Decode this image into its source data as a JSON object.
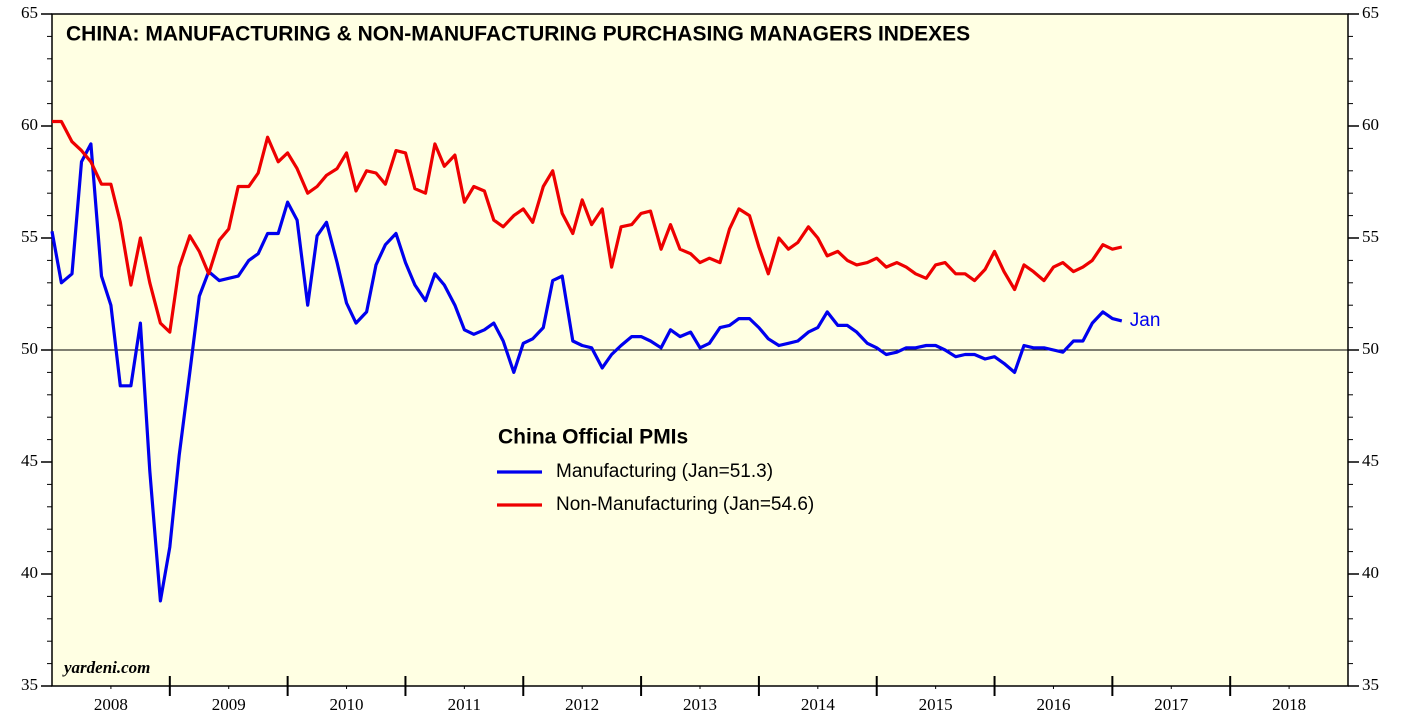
{
  "chart_data": {
    "type": "line",
    "title": "CHINA: MANUFACTURING & NON-MANUFACTURING PURCHASING MANAGERS INDEXES",
    "source": "yardeni.com",
    "legend_title": "China Official PMIs",
    "annotation": "Jan",
    "x": [
      2008,
      2008.08,
      2008.17,
      2008.25,
      2008.33,
      2008.42,
      2008.5,
      2008.58,
      2008.67,
      2008.75,
      2008.83,
      2008.92,
      2009,
      2009.08,
      2009.17,
      2009.25,
      2009.33,
      2009.42,
      2009.5,
      2009.58,
      2009.67,
      2009.75,
      2009.83,
      2009.92,
      2010,
      2010.08,
      2010.17,
      2010.25,
      2010.33,
      2010.42,
      2010.5,
      2010.58,
      2010.67,
      2010.75,
      2010.83,
      2010.92,
      2011,
      2011.08,
      2011.17,
      2011.25,
      2011.33,
      2011.42,
      2011.5,
      2011.58,
      2011.67,
      2011.75,
      2011.83,
      2011.92,
      2012,
      2012.08,
      2012.17,
      2012.25,
      2012.33,
      2012.42,
      2012.5,
      2012.58,
      2012.67,
      2012.75,
      2012.83,
      2012.92,
      2013,
      2013.08,
      2013.17,
      2013.25,
      2013.33,
      2013.42,
      2013.5,
      2013.58,
      2013.67,
      2013.75,
      2013.83,
      2013.92,
      2014,
      2014.08,
      2014.17,
      2014.25,
      2014.33,
      2014.42,
      2014.5,
      2014.58,
      2014.67,
      2014.75,
      2014.83,
      2014.92,
      2015,
      2015.08,
      2015.17,
      2015.25,
      2015.33,
      2015.42,
      2015.5,
      2015.58,
      2015.67,
      2015.75,
      2015.83,
      2015.92,
      2016,
      2016.08,
      2016.17,
      2016.25,
      2016.33,
      2016.42,
      2016.5,
      2016.58,
      2016.67,
      2016.75,
      2016.83,
      2016.92,
      2017,
      2017.08
    ],
    "series": [
      {
        "name": "Manufacturing (Jan=51.3)",
        "color": "#0000ee",
        "values": [
          55.3,
          53.0,
          53.4,
          58.4,
          59.2,
          53.3,
          52.0,
          48.4,
          48.4,
          51.2,
          44.6,
          38.8,
          41.2,
          45.3,
          49.0,
          52.4,
          53.5,
          53.1,
          53.2,
          53.3,
          54.0,
          54.3,
          55.2,
          55.2,
          56.6,
          55.8,
          52.0,
          55.1,
          55.7,
          53.9,
          52.1,
          51.2,
          51.7,
          53.8,
          54.7,
          55.2,
          53.9,
          52.9,
          52.2,
          53.4,
          52.9,
          52.0,
          50.9,
          50.7,
          50.9,
          51.2,
          50.4,
          49.0,
          50.3,
          50.5,
          51.0,
          53.1,
          53.3,
          50.4,
          50.2,
          50.1,
          49.2,
          49.8,
          50.2,
          50.6,
          50.6,
          50.4,
          50.1,
          50.9,
          50.6,
          50.8,
          50.1,
          50.3,
          51.0,
          51.1,
          51.4,
          51.4,
          51.0,
          50.5,
          50.2,
          50.3,
          50.4,
          50.8,
          51.0,
          51.7,
          51.1,
          51.1,
          50.8,
          50.3,
          50.1,
          49.8,
          49.9,
          50.1,
          50.1,
          50.2,
          50.2,
          50.0,
          49.7,
          49.8,
          49.8,
          49.6,
          49.7,
          49.4,
          49.0,
          50.2,
          50.1,
          50.1,
          50.0,
          49.9,
          50.4,
          50.4,
          51.2,
          51.7,
          51.4,
          51.3
        ]
      },
      {
        "name": "Non-Manufacturing (Jan=54.6)",
        "color": "#ee0000",
        "values": [
          60.2,
          60.2,
          59.3,
          58.9,
          58.4,
          57.4,
          57.4,
          55.7,
          52.9,
          55.0,
          53.0,
          51.2,
          50.8,
          53.7,
          55.1,
          54.4,
          53.4,
          54.9,
          55.4,
          57.3,
          57.3,
          57.9,
          59.5,
          58.4,
          58.8,
          58.1,
          57.0,
          57.3,
          57.8,
          58.1,
          58.8,
          57.1,
          58.0,
          57.9,
          57.4,
          58.9,
          58.8,
          57.2,
          57.0,
          59.2,
          58.2,
          58.7,
          56.6,
          57.3,
          57.1,
          55.8,
          55.5,
          56.0,
          56.3,
          55.7,
          57.3,
          58.0,
          56.1,
          55.2,
          56.7,
          55.6,
          56.3,
          53.7,
          55.5,
          55.6,
          56.1,
          56.2,
          54.5,
          55.6,
          54.5,
          54.3,
          53.9,
          54.1,
          53.9,
          55.4,
          56.3,
          56.0,
          54.6,
          53.4,
          55.0,
          54.5,
          54.8,
          55.5,
          55.0,
          54.2,
          54.4,
          54.0,
          53.8,
          53.9,
          54.1,
          53.7,
          53.9,
          53.7,
          53.4,
          53.2,
          53.8,
          53.9,
          53.4,
          53.4,
          53.1,
          53.6,
          54.4,
          53.5,
          52.7,
          53.8,
          53.5,
          53.1,
          53.7,
          53.9,
          53.5,
          53.7,
          54.0,
          54.7,
          54.5,
          54.6
        ]
      }
    ],
    "xlim": [
      2008,
      2019
    ],
    "xticks": [
      {
        "value": 2008.5,
        "label": "2008"
      },
      {
        "value": 2009.5,
        "label": "2009"
      },
      {
        "value": 2010.5,
        "label": "2010"
      },
      {
        "value": 2011.5,
        "label": "2011"
      },
      {
        "value": 2012.5,
        "label": "2012"
      },
      {
        "value": 2013.5,
        "label": "2013"
      },
      {
        "value": 2014.5,
        "label": "2014"
      },
      {
        "value": 2015.5,
        "label": "2015"
      },
      {
        "value": 2016.5,
        "label": "2016"
      },
      {
        "value": 2017.5,
        "label": "2017"
      },
      {
        "value": 2018.5,
        "label": "2018"
      }
    ],
    "ylim": [
      35,
      65
    ],
    "yticks": [
      35,
      40,
      45,
      50,
      55,
      60,
      65
    ],
    "reference_line": 50
  }
}
